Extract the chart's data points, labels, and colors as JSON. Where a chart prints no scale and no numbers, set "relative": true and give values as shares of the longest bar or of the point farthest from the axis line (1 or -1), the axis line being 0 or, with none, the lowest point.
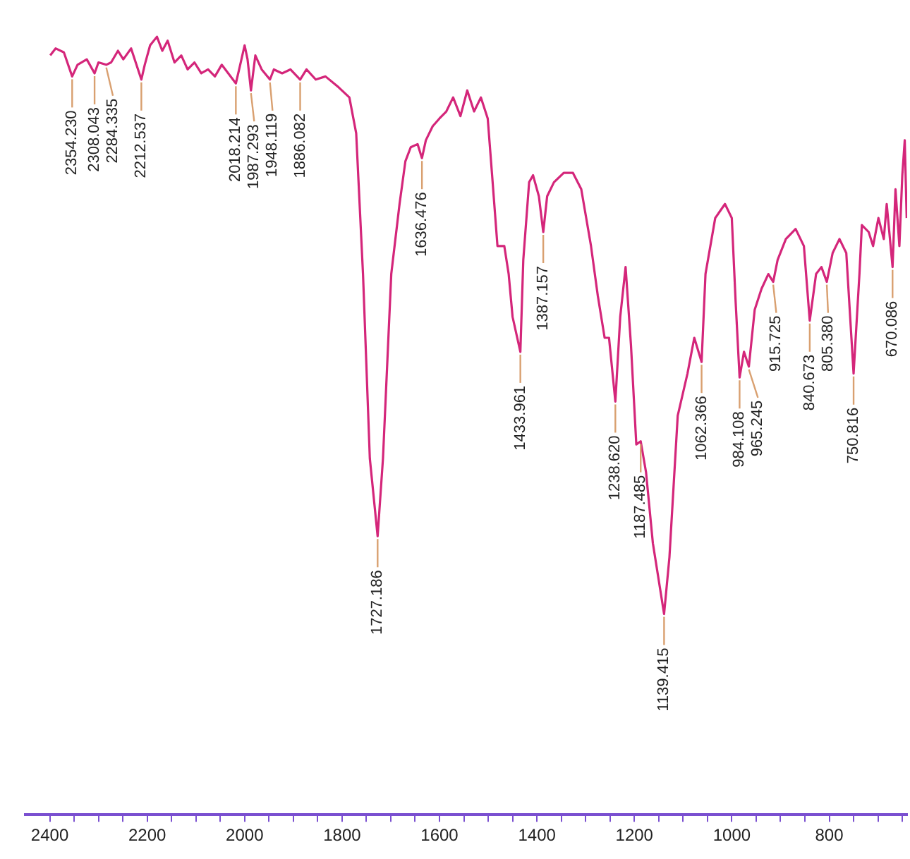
{
  "chart_data": {
    "type": "line",
    "relative": true,
    "xlim": [
      2450,
      640
    ],
    "xticks": [
      2400,
      {
        "value": 2350,
        "label": null
      },
      {
        "value": 2300,
        "label": null
      },
      {
        "value": 2250,
        "label": null
      },
      2200,
      {
        "value": 2150,
        "label": null
      },
      {
        "value": 2100,
        "label": null
      },
      {
        "value": 2050,
        "label": null
      },
      2000,
      {
        "value": 1950,
        "label": null
      },
      {
        "value": 1900,
        "label": null
      },
      {
        "value": 1850,
        "label": null
      },
      1800,
      {
        "value": 1750,
        "label": null
      },
      {
        "value": 1700,
        "label": null
      },
      {
        "value": 1650,
        "label": null
      },
      1600,
      {
        "value": 1550,
        "label": null
      },
      {
        "value": 1500,
        "label": null
      },
      {
        "value": 1450,
        "label": null
      },
      1400,
      {
        "value": 1350,
        "label": null
      },
      {
        "value": 1300,
        "label": null
      },
      {
        "value": 1250,
        "label": null
      },
      1200,
      {
        "value": 1150,
        "label": null
      },
      {
        "value": 1100,
        "label": null
      },
      {
        "value": 1050,
        "label": null
      },
      1000,
      {
        "value": 950,
        "label": null
      },
      {
        "value": 900,
        "label": null
      },
      {
        "value": 850,
        "label": null
      },
      800,
      {
        "value": 750,
        "label": null
      },
      {
        "value": 700,
        "label": null
      },
      {
        "value": 650,
        "label": null
      }
    ],
    "x": [
      2399,
      2388,
      2371,
      2354,
      2343,
      2324,
      2308,
      2300,
      2284,
      2274,
      2260,
      2249,
      2233,
      2212,
      2205,
      2194,
      2180,
      2169,
      2158,
      2144,
      2130,
      2117,
      2103,
      2089,
      2075,
      2061,
      2047,
      2018,
      2008,
      2000,
      1994,
      1987,
      1978,
      1965,
      1948,
      1940,
      1923,
      1906,
      1886,
      1873,
      1854,
      1834,
      1807,
      1785,
      1771,
      1757,
      1743,
      1727,
      1716,
      1699,
      1682,
      1670,
      1659,
      1645,
      1636,
      1628,
      1614,
      1600,
      1586,
      1572,
      1557,
      1543,
      1529,
      1515,
      1501,
      1492,
      1481,
      1467,
      1458,
      1450,
      1434,
      1428,
      1416,
      1408,
      1396,
      1387,
      1379,
      1365,
      1345,
      1326,
      1309,
      1289,
      1275,
      1261,
      1252,
      1239,
      1229,
      1218,
      1207,
      1196,
      1187,
      1176,
      1162,
      1139,
      1128,
      1111,
      1091,
      1077,
      1062,
      1054,
      1034,
      1014,
      1000,
      992,
      984,
      975,
      965,
      953,
      939,
      925,
      915,
      906,
      889,
      869,
      852,
      840,
      827,
      816,
      805,
      793,
      779,
      765,
      750,
      738,
      733,
      719,
      710,
      699,
      688,
      682,
      670,
      664,
      656,
      650,
      645,
      641
    ],
    "series": [
      {
        "color": "#d4267a",
        "values": [
          0.976,
          0.985,
          0.98,
          0.949,
          0.964,
          0.971,
          0.953,
          0.967,
          0.964,
          0.967,
          0.982,
          0.971,
          0.985,
          0.945,
          0.964,
          0.989,
          1,
          0.982,
          0.995,
          0.967,
          0.976,
          0.958,
          0.967,
          0.953,
          0.958,
          0.949,
          0.964,
          0.94,
          0.967,
          0.989,
          0.971,
          0.931,
          0.976,
          0.958,
          0.945,
          0.958,
          0.953,
          0.958,
          0.945,
          0.958,
          0.945,
          0.949,
          0.935,
          0.922,
          0.876,
          0.695,
          0.458,
          0.358,
          0.458,
          0.695,
          0.785,
          0.84,
          0.858,
          0.862,
          0.844,
          0.867,
          0.885,
          0.895,
          0.904,
          0.922,
          0.898,
          0.931,
          0.904,
          0.922,
          0.895,
          0.822,
          0.731,
          0.731,
          0.695,
          0.64,
          0.595,
          0.713,
          0.813,
          0.822,
          0.795,
          0.749,
          0.795,
          0.813,
          0.825,
          0.825,
          0.804,
          0.731,
          0.667,
          0.613,
          0.613,
          0.531,
          0.64,
          0.704,
          0.604,
          0.476,
          0.48,
          0.44,
          0.349,
          0.258,
          0.331,
          0.513,
          0.567,
          0.613,
          0.582,
          0.695,
          0.767,
          0.785,
          0.767,
          0.658,
          0.562,
          0.595,
          0.576,
          0.649,
          0.676,
          0.695,
          0.685,
          0.713,
          0.74,
          0.753,
          0.731,
          0.635,
          0.695,
          0.704,
          0.685,
          0.722,
          0.74,
          0.722,
          0.567,
          0.695,
          0.758,
          0.749,
          0.731,
          0.767,
          0.74,
          0.785,
          0.704,
          0.804,
          0.731,
          0.822,
          0.867,
          0.767
        ]
      }
    ],
    "annotations": [
      {
        "text": "2354.230",
        "x": 2354,
        "y": 0.949
      },
      {
        "text": "2308.043",
        "x": 2308,
        "y": 0.953
      },
      {
        "text": "2284.335",
        "x": 2284,
        "y": 0.964
      },
      {
        "text": "2212.537",
        "x": 2212,
        "y": 0.945
      },
      {
        "text": "2018.214",
        "x": 2018,
        "y": 0.94
      },
      {
        "text": "1948.119",
        "x": 1948,
        "y": 0.945
      },
      {
        "text": "1987.293",
        "x": 1987,
        "y": 0.931
      },
      {
        "text": "1886.082",
        "x": 1886,
        "y": 0.945
      },
      {
        "text": "1727.186",
        "x": 1727,
        "y": 0.358
      },
      {
        "text": "1636.476",
        "x": 1636,
        "y": 0.844
      },
      {
        "text": "1433.961",
        "x": 1434,
        "y": 0.595
      },
      {
        "text": "1387.157",
        "x": 1387,
        "y": 0.749
      },
      {
        "text": "1238.620",
        "x": 1239,
        "y": 0.531
      },
      {
        "text": "1187.485",
        "x": 1187,
        "y": 0.48
      },
      {
        "text": "1139.415",
        "x": 1139,
        "y": 0.258
      },
      {
        "text": "1062.366",
        "x": 1062,
        "y": 0.582
      },
      {
        "text": "984.108",
        "x": 984,
        "y": 0.562
      },
      {
        "text": "965.245",
        "x": 965,
        "y": 0.576
      },
      {
        "text": "915.725",
        "x": 915,
        "y": 0.685
      },
      {
        "text": "840.673",
        "x": 840,
        "y": 0.635
      },
      {
        "text": "805.380",
        "x": 805,
        "y": 0.685
      },
      {
        "text": "750.816",
        "x": 750,
        "y": 0.567
      },
      {
        "text": "670.086",
        "x": 670,
        "y": 0.704
      }
    ]
  }
}
